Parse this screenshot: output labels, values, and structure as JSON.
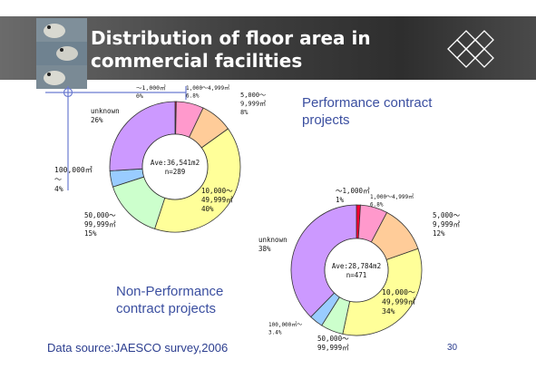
{
  "slide": {
    "title": "Distribution of floor area in\ncommercial facilities",
    "source": "Data source:JAESCO survey,2006",
    "page_number": "30",
    "accent_colors": {
      "title_bar": "#3f3f3f",
      "text_blue": "#3b4fa0"
    },
    "icons": [
      "bird-photo-icon",
      "lattice-logo-icon"
    ]
  },
  "chart_data": [
    {
      "type": "pie",
      "style": "donut",
      "label": "Performance contract\nprojects",
      "center_text": [
        "Ave:36,541m2",
        "n=289"
      ],
      "slices": [
        {
          "name": "～1,000㎡",
          "pct_label": "0%",
          "value": 0.3,
          "color": "#ff0033"
        },
        {
          "name": "1,000～4,999㎡",
          "pct_label": "6.8%",
          "value": 6.8,
          "color": "#ff99cc"
        },
        {
          "name": "5,000～\n9,999㎡",
          "pct_label": "8%",
          "value": 8,
          "color": "#ffcc99"
        },
        {
          "name": "10,000～\n49,999㎡",
          "pct_label": "40%",
          "value": 40,
          "color": "#ffff99"
        },
        {
          "name": "50,000～\n99,999㎡",
          "pct_label": "15%",
          "value": 15,
          "color": "#ccffcc"
        },
        {
          "name": "100,000㎡\n～",
          "pct_label": "4%",
          "value": 4,
          "color": "#99ccff"
        },
        {
          "name": "unknown",
          "pct_label": "26%",
          "value": 26,
          "color": "#cc99ff"
        }
      ]
    },
    {
      "type": "pie",
      "style": "donut",
      "label": "Non-Performance\ncontract projects",
      "center_text": [
        "Ave:28,784m2",
        "n=471"
      ],
      "slices": [
        {
          "name": "～1,000㎡",
          "pct_label": "1%",
          "value": 1,
          "color": "#ff0033"
        },
        {
          "name": "1,000～4,999㎡",
          "pct_label": "6.8%",
          "value": 6.8,
          "color": "#ff99cc"
        },
        {
          "name": "5,000～\n9,999㎡",
          "pct_label": "12%",
          "value": 12,
          "color": "#ffcc99"
        },
        {
          "name": "10,000～\n49,999㎡",
          "pct_label": "34%",
          "value": 34,
          "color": "#ffff99"
        },
        {
          "name": "50,000～\n99,999㎡",
          "pct_label": "",
          "value": 5.6,
          "color": "#ccffcc"
        },
        {
          "name": "100,000㎡～",
          "pct_label": "3.4%",
          "value": 3.4,
          "color": "#99ccff"
        },
        {
          "name": "unknown",
          "pct_label": "38%",
          "value": 38,
          "color": "#cc99ff"
        }
      ]
    }
  ]
}
